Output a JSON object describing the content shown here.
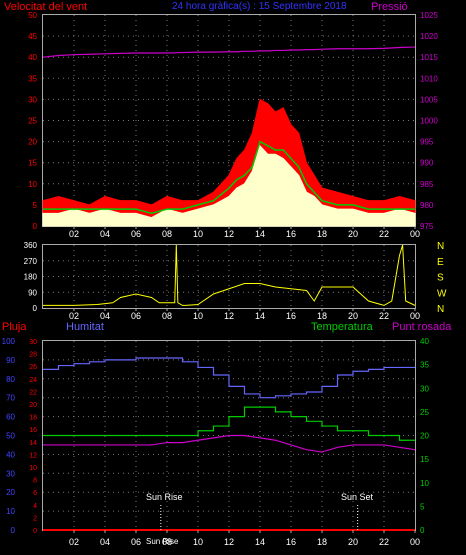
{
  "header": {
    "wind_label": "Velocitat del vent",
    "title": "24 hora gràfica(s) : 15 Septembre 2018",
    "pressure_label": "Pressió"
  },
  "lower_labels": {
    "rain": "Pluja",
    "humidity": "Humitat",
    "temperature": "Temperatura",
    "dewpoint": "Punt rosada"
  },
  "annotations": {
    "sunrise": "Sun Rise",
    "sunset": "Sun Set",
    "sunrise_tick": "Sun Rise"
  },
  "colors": {
    "wind_gust": "#ff0000",
    "wind_speed": "#ffffcc",
    "wind_avg": "#00cc00",
    "pressure": "#cc00cc",
    "direction": "#ffff00",
    "humidity": "#6666ff",
    "temperature": "#00cc00",
    "dewpoint": "#cc00cc",
    "rain": "#ff0000",
    "axis_red": "#ff0000",
    "axis_blue": "#4444ff",
    "axis_green": "#00cc00",
    "axis_magenta": "#cc00cc"
  },
  "chart_data": [
    {
      "type": "line",
      "name": "wind",
      "xlabel": "",
      "ylabel": "Velocitat del vent",
      "x_ticks": [
        "02",
        "04",
        "06",
        "08",
        "10",
        "12",
        "14",
        "16",
        "18",
        "20",
        "22",
        "00"
      ],
      "ylim_left": [
        0,
        50
      ],
      "y_ticks_left": [
        "0",
        "5",
        "10",
        "15",
        "20",
        "25",
        "30",
        "35",
        "40",
        "45",
        "50"
      ],
      "ylim_right": [
        975,
        1025
      ],
      "y_ticks_right": [
        "975",
        "980",
        "985",
        "990",
        "995",
        "1000",
        "1005",
        "1010",
        "1015",
        "1020",
        "1025"
      ],
      "x_hours": [
        0,
        1,
        2,
        3,
        4,
        5,
        6,
        7,
        8,
        9,
        10,
        11,
        12,
        12.5,
        13,
        13.5,
        14,
        14.5,
        15,
        15.5,
        16,
        16.5,
        17,
        17.5,
        18,
        19,
        20,
        21,
        22,
        23,
        24
      ],
      "series": [
        {
          "name": "gust",
          "values": [
            6,
            7,
            6,
            5,
            7,
            6,
            6,
            5,
            7,
            6,
            6,
            8,
            12,
            16,
            18,
            22,
            30,
            29,
            27,
            28,
            24,
            22,
            15,
            12,
            9,
            8,
            7,
            6,
            6,
            7,
            6
          ]
        },
        {
          "name": "speed",
          "values": [
            3,
            3,
            4,
            3,
            4,
            3,
            3,
            2,
            4,
            3,
            4,
            5,
            7,
            9,
            10,
            13,
            19,
            17,
            17,
            16,
            14,
            12,
            8,
            7,
            5,
            4,
            4,
            3,
            3,
            4,
            3
          ]
        },
        {
          "name": "average",
          "values": [
            4,
            4,
            4,
            4,
            4,
            4,
            4,
            3,
            4,
            4,
            5,
            6,
            9,
            11,
            12,
            14,
            20,
            19,
            18,
            18,
            16,
            14,
            10,
            8,
            6,
            5,
            5,
            4,
            4,
            4,
            4
          ]
        },
        {
          "name": "pressure",
          "values": [
            1015.0,
            1015.4,
            1015.6,
            1015.7,
            1015.8,
            1015.9,
            1016.0,
            1016.0,
            1016.0,
            1016.1,
            1016.2,
            1016.2,
            1016.3,
            1016.3,
            1016.4,
            1016.4,
            1016.5,
            1016.5,
            1016.6,
            1016.6,
            1016.7,
            1016.7,
            1016.8,
            1016.8,
            1016.9,
            1017.0,
            1017.0,
            1017.0,
            1017.1,
            1017.3,
            1017.4
          ]
        }
      ]
    },
    {
      "type": "line",
      "name": "wind_direction",
      "x_ticks": [
        "02",
        "04",
        "06",
        "08",
        "10",
        "12",
        "14",
        "16",
        "18",
        "20",
        "22",
        "00"
      ],
      "ylim": [
        0,
        360
      ],
      "y_ticks": [
        "0",
        "90",
        "180",
        "270",
        "360"
      ],
      "right_labels": [
        "N",
        "W",
        "S",
        "E",
        "N"
      ],
      "x_hours": [
        0,
        2,
        3.5,
        4.5,
        5,
        6,
        7,
        7.5,
        8,
        8.5,
        8.6,
        8.7,
        9,
        9.2,
        10,
        11,
        12,
        13,
        14,
        15,
        16,
        17,
        17.5,
        18,
        19,
        20,
        21,
        22,
        22.5,
        23,
        23.2,
        23.4,
        24
      ],
      "values": [
        15,
        15,
        20,
        30,
        60,
        80,
        60,
        30,
        30,
        30,
        360,
        30,
        15,
        15,
        20,
        80,
        110,
        140,
        140,
        120,
        110,
        100,
        40,
        120,
        120,
        120,
        40,
        15,
        40,
        300,
        360,
        40,
        15
      ]
    },
    {
      "type": "line",
      "name": "humidity_temperature",
      "x_ticks": [
        "02",
        "04",
        "06",
        "08",
        "10",
        "12",
        "14",
        "16",
        "18",
        "20",
        "22",
        "00"
      ],
      "ylim_humidity": [
        0,
        100
      ],
      "y_ticks_humidity": [
        "0",
        "10",
        "20",
        "30",
        "40",
        "50",
        "60",
        "70",
        "80",
        "90",
        "100"
      ],
      "ylim_rain": [
        0,
        30
      ],
      "y_ticks_rain": [
        "0",
        "2",
        "4",
        "6",
        "8",
        "10",
        "12",
        "14",
        "16",
        "18",
        "20",
        "22",
        "24",
        "26",
        "28",
        "30"
      ],
      "ylim_temp": [
        0,
        40
      ],
      "y_ticks_temp": [
        "0",
        "5",
        "10",
        "15",
        "20",
        "25",
        "30",
        "35",
        "40"
      ],
      "x_hours": [
        0,
        1,
        2,
        3,
        4,
        5,
        6,
        7,
        8,
        9,
        10,
        11,
        12,
        13,
        14,
        15,
        16,
        17,
        18,
        19,
        20,
        21,
        22,
        23,
        24
      ],
      "series": [
        {
          "name": "humidity",
          "values": [
            85,
            87,
            88,
            89,
            90,
            90,
            91,
            91,
            91,
            89,
            86,
            82,
            76,
            72,
            70,
            71,
            72,
            73,
            76,
            82,
            84,
            85,
            86,
            86,
            86
          ]
        },
        {
          "name": "temperature",
          "values": [
            20,
            20,
            20,
            20,
            20,
            20,
            20,
            20,
            20,
            20,
            21,
            22,
            24,
            26,
            26,
            25,
            24,
            23,
            22,
            21,
            21,
            20,
            20,
            19,
            19
          ]
        },
        {
          "name": "dewpoint",
          "values": [
            18,
            18,
            18,
            18,
            18,
            18,
            18,
            18,
            18.5,
            18.5,
            19,
            19.5,
            20,
            20,
            19.5,
            19,
            18,
            17,
            16.5,
            17.5,
            18,
            18,
            18,
            17.5,
            17
          ]
        },
        {
          "name": "rain",
          "values": [
            0,
            0,
            0,
            0,
            0,
            0,
            0,
            0,
            0,
            0,
            0,
            0,
            0,
            0,
            0,
            0,
            0,
            0,
            0,
            0,
            0,
            0,
            0,
            0,
            0
          ]
        }
      ],
      "sunrise_hour": 7.6,
      "sunset_hour": 20.3
    }
  ]
}
